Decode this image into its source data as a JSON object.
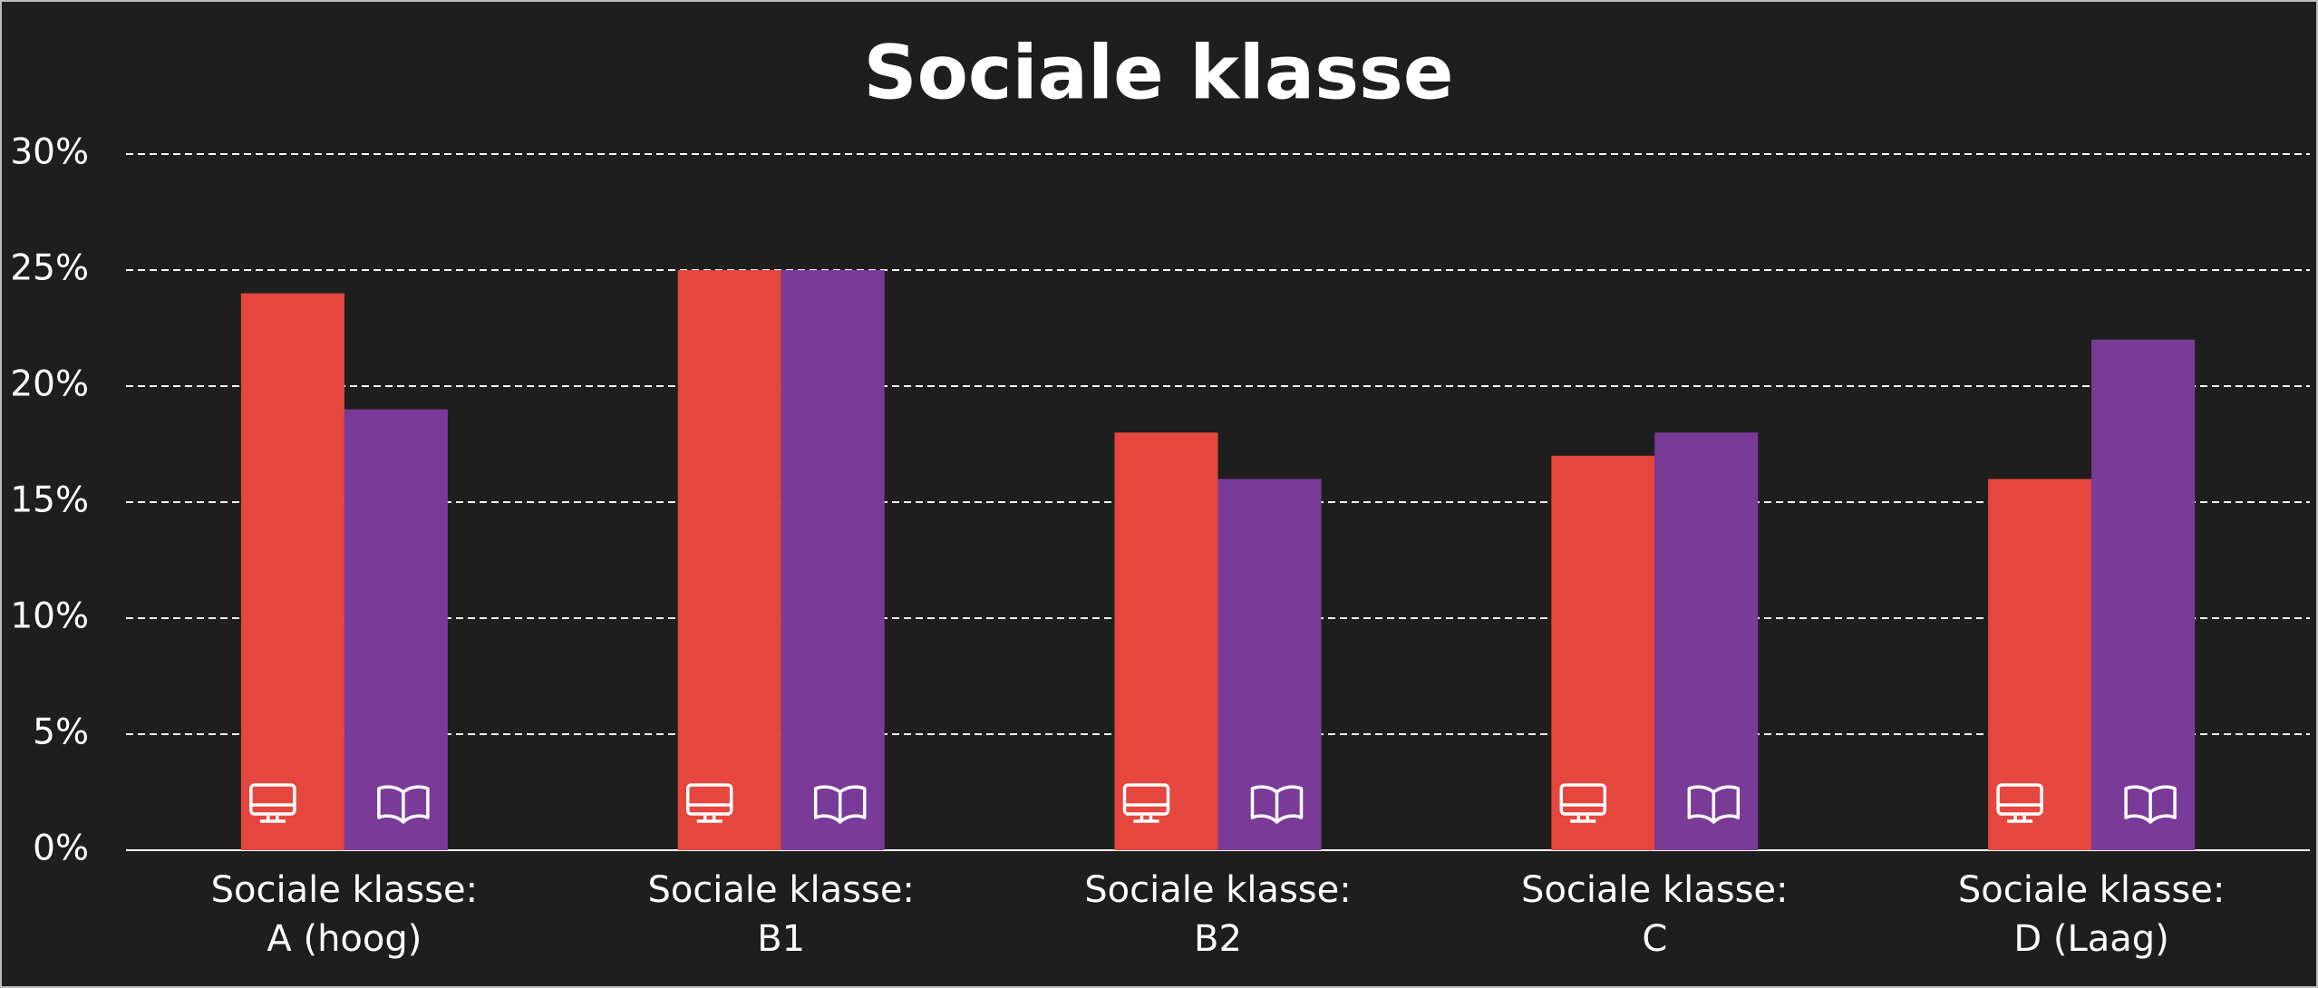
{
  "chart_data": {
    "type": "bar",
    "title": "Sociale klasse",
    "categories": [
      "Sociale klasse:\nA (hoog)",
      "Sociale klasse:\nB1",
      "Sociale klasse:\nB2",
      "Sociale klasse:\nC",
      "Sociale klasse:\nD (Laag)"
    ],
    "series": [
      {
        "color": "#e5463d",
        "values": [
          24,
          25,
          18,
          17,
          16
        ]
      },
      {
        "color": "#7a3b98",
        "values": [
          19,
          25,
          16,
          18,
          22
        ]
      }
    ],
    "ylim": [
      0,
      30
    ],
    "yticks": [
      {
        "value": 0,
        "label": "0%"
      },
      {
        "value": 5,
        "label": "5%"
      },
      {
        "value": 10,
        "label": "10%"
      },
      {
        "value": 15,
        "label": "15%"
      },
      {
        "value": 20,
        "label": "20%"
      },
      {
        "value": 25,
        "label": "25%"
      },
      {
        "value": 30,
        "label": "30%"
      }
    ],
    "grid": true
  }
}
